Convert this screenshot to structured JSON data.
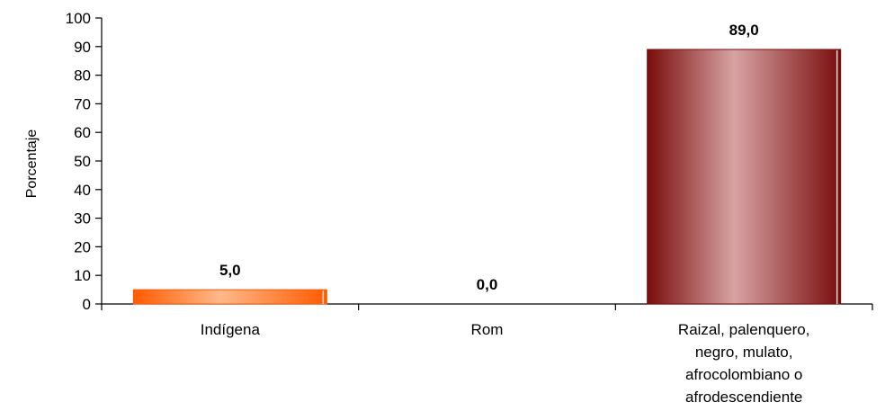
{
  "chart_data": {
    "type": "bar",
    "categories": [
      [
        "Indígena"
      ],
      [
        "Rom"
      ],
      [
        "Raizal, palenquero,",
        "negro, mulato,",
        "afrocolombiano o",
        "afrodescendiente"
      ]
    ],
    "values": [
      5.0,
      0.0,
      89.0
    ],
    "data_labels": [
      "5,0",
      "0,0",
      "89,0"
    ],
    "xlabel": "",
    "ylabel": "Porcentaje",
    "ylim": [
      0,
      100
    ],
    "yticks": [
      0,
      10,
      20,
      30,
      40,
      50,
      60,
      70,
      80,
      90,
      100
    ],
    "grid": false,
    "legend": "none",
    "colors": {
      "bar_0": {
        "dark": "#ff5a00",
        "light": "#ffb98a"
      },
      "bar_1": {
        "dark": "#c0c0c0",
        "light": "#e8e8e8"
      },
      "bar_2": {
        "dark": "#7a0c0c",
        "light": "#d7a3a3"
      }
    }
  }
}
